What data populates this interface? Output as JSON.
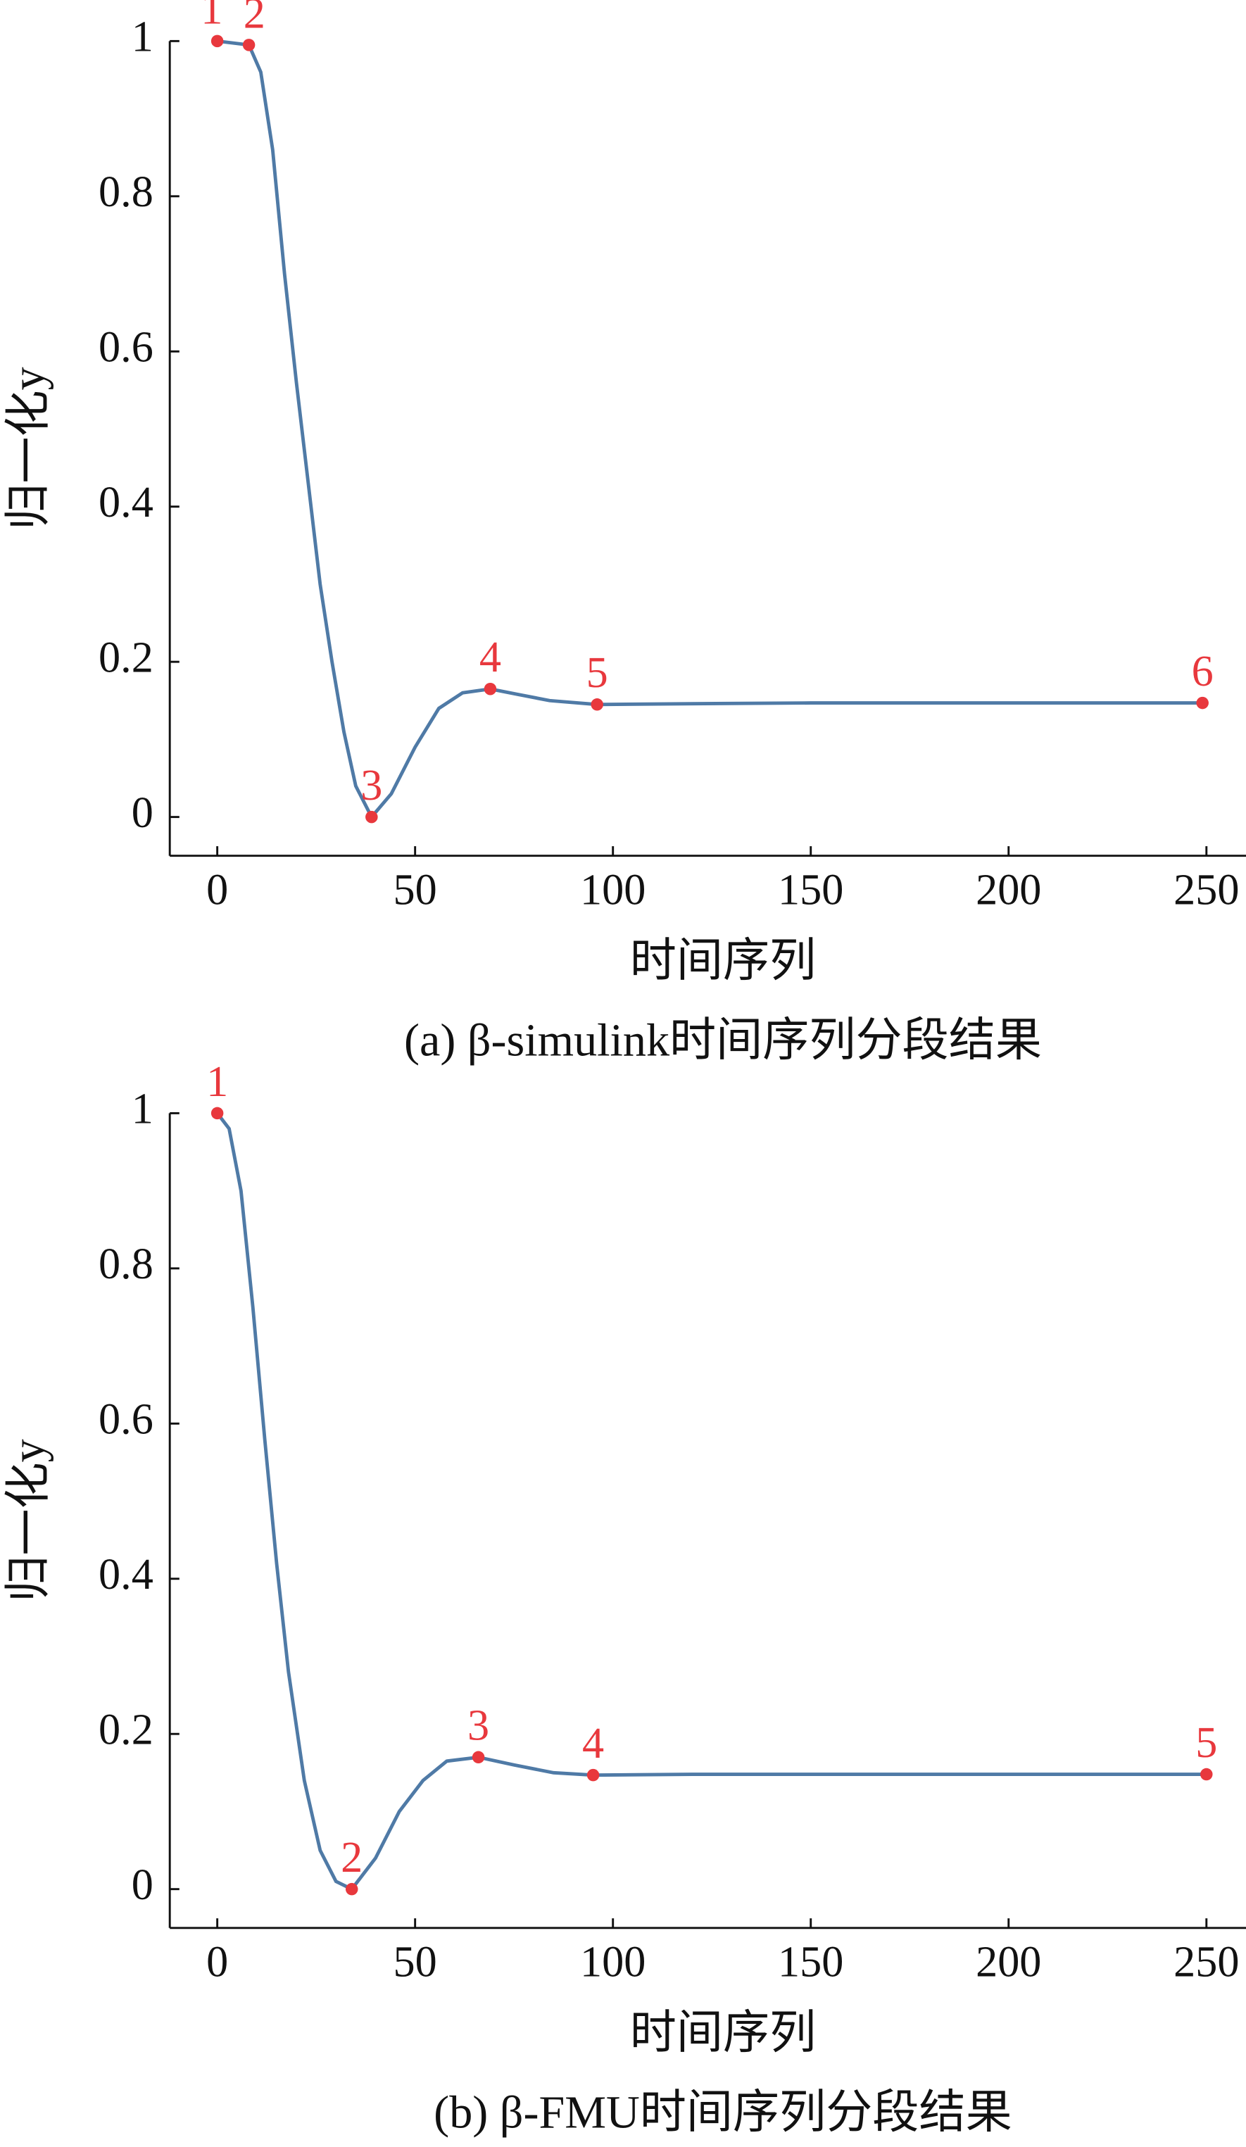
{
  "chart_data": [
    {
      "type": "line",
      "caption": "(a) β-simulink时间序列分段结果",
      "x_label": "时间序列",
      "y_label": "归一化y",
      "color": "#4f7aa6",
      "x": [
        0,
        8,
        11,
        14,
        17,
        20,
        23,
        26,
        29,
        32,
        35,
        39,
        44,
        50,
        56,
        62,
        69,
        76,
        84,
        96,
        120,
        150,
        200,
        249
      ],
      "values": [
        1,
        0.995,
        0.96,
        0.86,
        0.7,
        0.56,
        0.43,
        0.3,
        0.2,
        0.11,
        0.04,
        0,
        0.03,
        0.09,
        0.14,
        0.16,
        0.165,
        0.158,
        0.15,
        0.145,
        0.146,
        0.147,
        0.147,
        0.147
      ],
      "points": {
        "color": "#e8383d",
        "x": [
          0,
          8,
          39,
          69,
          96,
          249
        ],
        "values": [
          1,
          0.995,
          0,
          0.165,
          0.145,
          0.147
        ],
        "labels": [
          "1",
          "2",
          "3",
          "4",
          "5",
          "6"
        ]
      },
      "xlim": [
        -12,
        260
      ],
      "ylim": [
        -0.05,
        1
      ],
      "xticks": [
        0,
        50,
        100,
        150,
        200,
        250
      ],
      "yticks": [
        0,
        0.2,
        0.4,
        0.6,
        0.8,
        1
      ]
    },
    {
      "type": "line",
      "caption": "(b) β-FMU时间序列分段结果",
      "x_label": "时间序列",
      "y_label": "归一化y",
      "color": "#4f7aa6",
      "x": [
        0,
        3,
        6,
        9,
        12,
        15,
        18,
        22,
        26,
        30,
        34,
        40,
        46,
        52,
        58,
        66,
        75,
        85,
        95,
        120,
        180,
        250
      ],
      "values": [
        1,
        0.98,
        0.9,
        0.75,
        0.58,
        0.42,
        0.28,
        0.14,
        0.05,
        0.01,
        0,
        0.04,
        0.1,
        0.14,
        0.165,
        0.17,
        0.16,
        0.15,
        0.147,
        0.148,
        0.148,
        0.148
      ],
      "points": {
        "color": "#e8383d",
        "x": [
          0,
          34,
          66,
          95,
          250
        ],
        "values": [
          1,
          0,
          0.17,
          0.147,
          0.148
        ],
        "labels": [
          "1",
          "2",
          "3",
          "4",
          "5"
        ]
      },
      "xlim": [
        -12,
        260
      ],
      "ylim": [
        -0.05,
        1
      ],
      "xticks": [
        0,
        50,
        100,
        150,
        200,
        250
      ],
      "yticks": [
        0,
        0.2,
        0.4,
        0.6,
        0.8,
        1
      ]
    }
  ]
}
